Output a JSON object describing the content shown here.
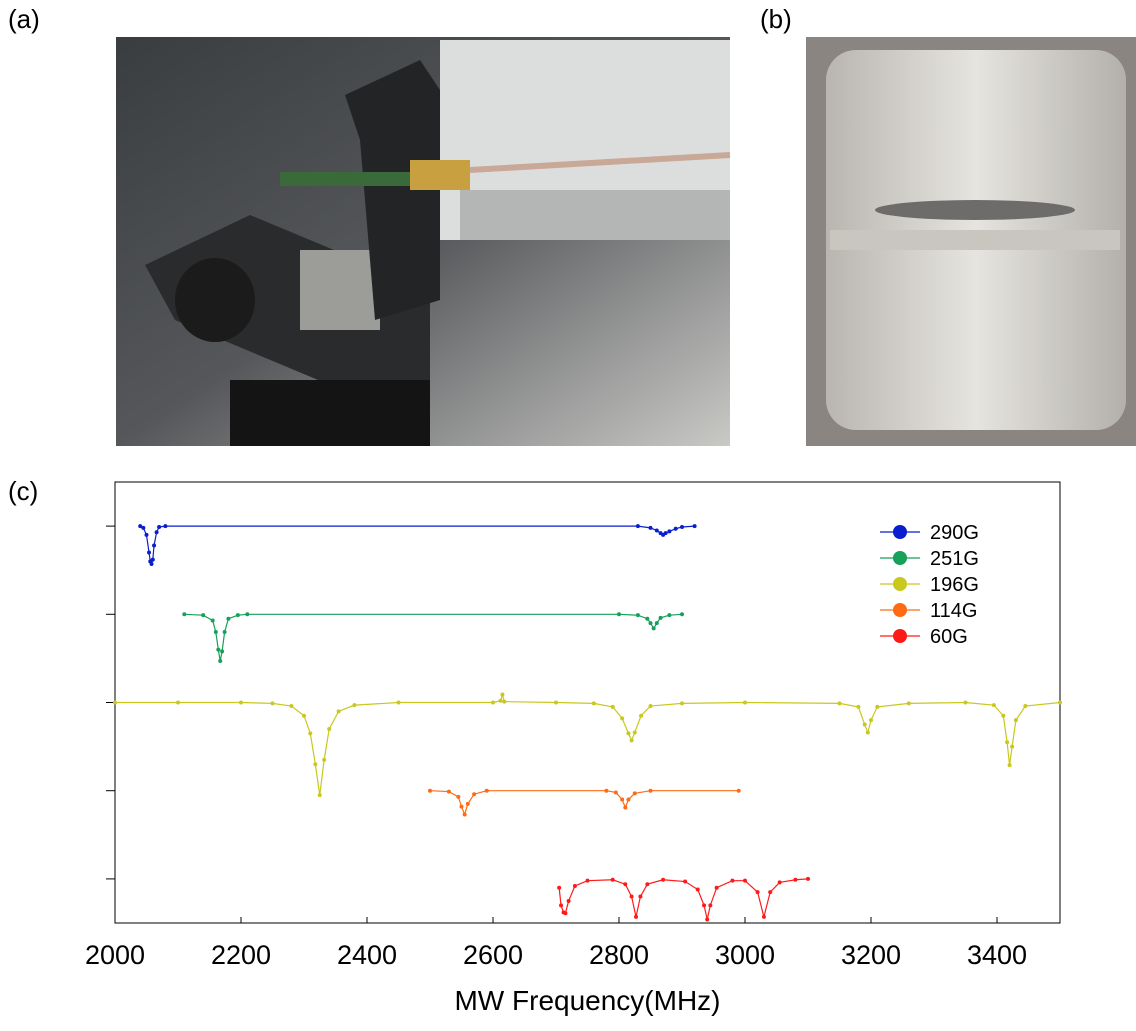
{
  "panel_labels": {
    "a": "(a)",
    "b": "(b)",
    "c": "(c)"
  },
  "chart_data": {
    "type": "line",
    "x_label": "MW Frequency(MHz)",
    "xlim": [
      2000,
      3500
    ],
    "xticks": [
      2000,
      2200,
      2400,
      2600,
      2800,
      3000,
      3200,
      3400
    ],
    "ylim": [
      -0.5,
      4.5
    ],
    "yticks": [
      0,
      1,
      2,
      3,
      4
    ],
    "legend": "upper right",
    "series": [
      {
        "name": "290G",
        "color": "#0a1ed0",
        "x": [
          2040,
          2045,
          2050,
          2054,
          2056,
          2058,
          2060,
          2062,
          2066,
          2070,
          2080,
          2830,
          2850,
          2860,
          2866,
          2870,
          2874,
          2880,
          2890,
          2900,
          2920
        ],
        "values": [
          4,
          3.98,
          3.9,
          3.7,
          3.6,
          3.57,
          3.62,
          3.78,
          3.93,
          3.99,
          4,
          4,
          3.98,
          3.95,
          3.92,
          3.9,
          3.92,
          3.94,
          3.97,
          3.99,
          4
        ]
      },
      {
        "name": "251G",
        "color": "#16a05a",
        "x": [
          2110,
          2140,
          2155,
          2160,
          2164,
          2167,
          2170,
          2174,
          2180,
          2195,
          2210,
          2800,
          2830,
          2845,
          2850,
          2855,
          2860,
          2866,
          2880,
          2900
        ],
        "values": [
          3,
          2.99,
          2.93,
          2.8,
          2.6,
          2.47,
          2.58,
          2.8,
          2.95,
          2.99,
          3,
          3,
          2.99,
          2.95,
          2.9,
          2.84,
          2.9,
          2.96,
          2.99,
          3
        ]
      },
      {
        "name": "196G",
        "color": "#c8c81e",
        "x": [
          2000,
          2100,
          2200,
          2250,
          2280,
          2300,
          2310,
          2318,
          2325,
          2332,
          2340,
          2355,
          2380,
          2450,
          2600,
          2612,
          2615,
          2618,
          2700,
          2760,
          2790,
          2805,
          2815,
          2820,
          2825,
          2835,
          2850,
          2900,
          3000,
          3150,
          3180,
          3190,
          3195,
          3200,
          3210,
          3260,
          3350,
          3395,
          3410,
          3416,
          3420,
          3424,
          3430,
          3445,
          3500
        ],
        "values": [
          2,
          2,
          2,
          1.99,
          1.96,
          1.85,
          1.65,
          1.3,
          0.95,
          1.35,
          1.7,
          1.9,
          1.97,
          2,
          2,
          2.02,
          2.09,
          2.01,
          2,
          1.99,
          1.95,
          1.82,
          1.65,
          1.57,
          1.66,
          1.85,
          1.96,
          1.99,
          2,
          1.99,
          1.95,
          1.75,
          1.66,
          1.8,
          1.95,
          1.99,
          2,
          1.97,
          1.85,
          1.55,
          1.29,
          1.5,
          1.8,
          1.96,
          2
        ]
      },
      {
        "name": "114G",
        "color": "#ff6a14",
        "x": [
          2500,
          2530,
          2545,
          2550,
          2555,
          2560,
          2570,
          2590,
          2780,
          2795,
          2805,
          2810,
          2815,
          2825,
          2850,
          2990
        ],
        "values": [
          1,
          0.99,
          0.93,
          0.82,
          0.73,
          0.85,
          0.96,
          1,
          1,
          0.98,
          0.9,
          0.81,
          0.9,
          0.97,
          1,
          1
        ]
      },
      {
        "name": "60G",
        "color": "#ff1a1a",
        "x": [
          2705,
          2708,
          2712,
          2715,
          2720,
          2730,
          2750,
          2790,
          2810,
          2820,
          2827,
          2834,
          2845,
          2870,
          2905,
          2925,
          2935,
          2940,
          2945,
          2955,
          2980,
          3000,
          3020,
          3030,
          3040,
          3055,
          3080,
          3100
        ],
        "values": [
          -0.1,
          -0.3,
          -0.38,
          -0.39,
          -0.25,
          -0.08,
          -0.02,
          -0.01,
          -0.06,
          -0.2,
          -0.43,
          -0.2,
          -0.06,
          -0.01,
          -0.03,
          -0.12,
          -0.3,
          -0.46,
          -0.3,
          -0.1,
          -0.02,
          -0.02,
          -0.15,
          -0.43,
          -0.15,
          -0.04,
          -0.01,
          0
        ]
      }
    ]
  }
}
